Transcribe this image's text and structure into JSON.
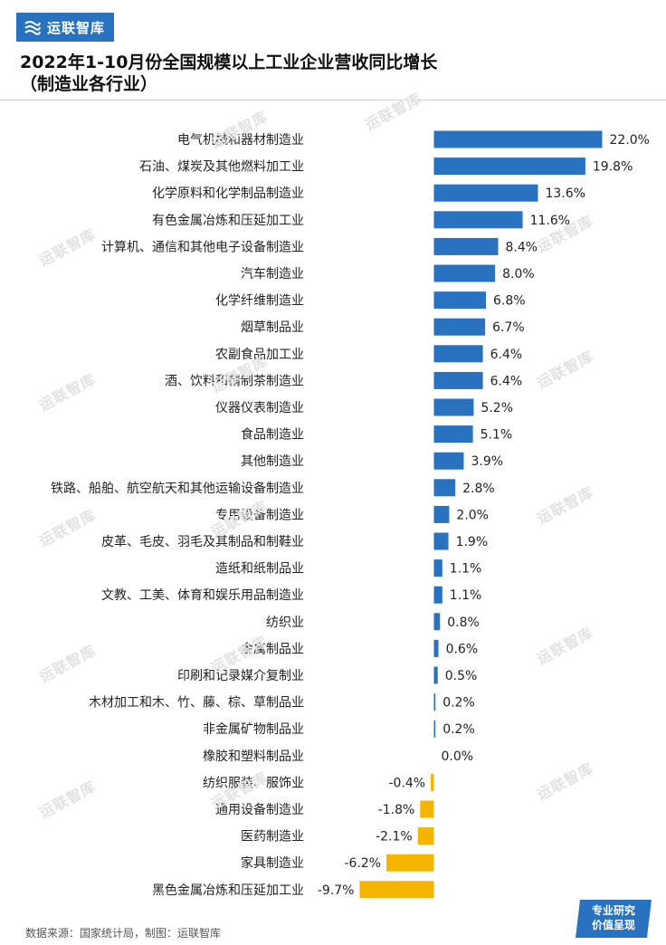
{
  "brand": {
    "logo_text": "运联智库"
  },
  "header": {
    "title": "2022年1-10月份全国规模以上工业企业营收同比增长",
    "subtitle": "（制造业各行业）"
  },
  "footer": {
    "source": "数据来源：国家统计局，制图：运联智库",
    "badge_line1": "专业研究",
    "badge_line2": "价值呈现"
  },
  "watermark": "运联智库",
  "colors": {
    "positive": "#2872c0",
    "negative": "#f5b400",
    "brand": "#2872c0"
  },
  "chart_data": {
    "type": "bar",
    "orientation": "horizontal",
    "title": "2022年1-10月份全国规模以上工业企业营收同比增长",
    "subtitle": "（制造业各行业）",
    "unit": "%",
    "categories": [
      "电气机械和器材制造业",
      "石油、煤炭及其他燃料加工业",
      "化学原料和化学制品制造业",
      "有色金属冶炼和压延加工业",
      "计算机、通信和其他电子设备制造业",
      "汽车制造业",
      "化学纤维制造业",
      "烟草制品业",
      "农副食品加工业",
      "酒、饮料和精制茶制造业",
      "仪器仪表制造业",
      "食品制造业",
      "其他制造业",
      "铁路、船舶、航空航天和其他运输设备制造业",
      "专用设备制造业",
      "皮革、毛皮、羽毛及其制品和制鞋业",
      "造纸和纸制品业",
      "文教、工美、体育和娱乐用品制造业",
      "纺织业",
      "金属制品业",
      "印刷和记录媒介复制业",
      "木材加工和木、竹、藤、棕、草制品业",
      "非金属矿物制品业",
      "橡胶和塑料制品业",
      "纺织服装、服饰业",
      "通用设备制造业",
      "医药制造业",
      "家具制造业",
      "黑色金属冶炼和压延加工业"
    ],
    "values": [
      22.0,
      19.8,
      13.6,
      11.6,
      8.4,
      8.0,
      6.8,
      6.7,
      6.4,
      6.4,
      5.2,
      5.1,
      3.9,
      2.8,
      2.0,
      1.9,
      1.1,
      1.1,
      0.8,
      0.6,
      0.5,
      0.2,
      0.2,
      0.0,
      -0.4,
      -1.8,
      -2.1,
      -6.2,
      -9.7
    ],
    "value_labels": [
      "22.0%",
      "19.8%",
      "13.6%",
      "11.6%",
      "8.4%",
      "8.0%",
      "6.8%",
      "6.7%",
      "6.4%",
      "6.4%",
      "5.2%",
      "5.1%",
      "3.9%",
      "2.8%",
      "2.0%",
      "1.9%",
      "1.1%",
      "1.1%",
      "0.8%",
      "0.6%",
      "0.5%",
      "0.2%",
      "0.2%",
      "0.0%",
      "-0.4%",
      "-1.8%",
      "-2.1%",
      "-6.2%",
      "-9.7%"
    ],
    "xlim": [
      -9.7,
      22.0
    ],
    "grid": false,
    "legend": "none"
  }
}
